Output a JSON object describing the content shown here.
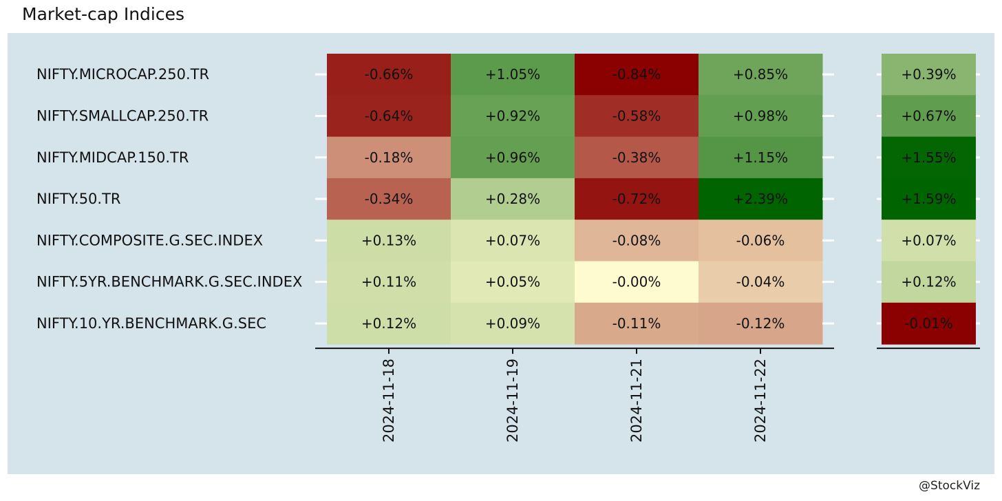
{
  "title": "Market-cap Indices",
  "credit": "@StockViz",
  "colors": {
    "panel_background": "#d5e3ea",
    "tick_marks": "#ffffff",
    "axis_line": "#111111",
    "text": "#111111",
    "strong_negative": "#8b0000",
    "neutral": "#fffbd0",
    "strong_positive": "#006400"
  },
  "chart_data": [
    {
      "type": "heatmap",
      "title": "",
      "xlabel": "",
      "ylabel": "",
      "x": [
        "2024-11-18",
        "2024-11-19",
        "2024-11-21",
        "2024-11-22"
      ],
      "y": [
        "NIFTY.MICROCAP.250.TR",
        "NIFTY.SMALLCAP.250.TR",
        "NIFTY.MIDCAP.150.TR",
        "NIFTY.50.TR",
        "NIFTY.COMPOSITE.G.SEC.INDEX",
        "NIFTY.5YR.BENCHMARK.G.SEC.INDEX",
        "NIFTY.10.YR.BENCHMARK.G.SEC"
      ],
      "values": [
        [
          -0.66,
          1.05,
          -0.84,
          0.85
        ],
        [
          -0.64,
          0.92,
          -0.58,
          0.98
        ],
        [
          -0.18,
          0.96,
          -0.38,
          1.15
        ],
        [
          -0.34,
          0.28,
          -0.72,
          2.39
        ],
        [
          0.13,
          0.07,
          -0.08,
          -0.06
        ],
        [
          0.11,
          0.05,
          -0.0,
          -0.04
        ],
        [
          0.12,
          0.09,
          -0.11,
          -0.12
        ]
      ],
      "labels": [
        [
          "-0.66%",
          "+1.05%",
          "-0.84%",
          "+0.85%"
        ],
        [
          "-0.64%",
          "+0.92%",
          "-0.58%",
          "+0.98%"
        ],
        [
          "-0.18%",
          "+0.96%",
          "-0.38%",
          "+1.15%"
        ],
        [
          "-0.34%",
          "+0.28%",
          "-0.72%",
          "+2.39%"
        ],
        [
          "+0.13%",
          "+0.07%",
          "-0.08%",
          "-0.06%"
        ],
        [
          "+0.11%",
          "+0.05%",
          "-0.00%",
          "-0.04%"
        ],
        [
          "+0.12%",
          "+0.09%",
          "-0.11%",
          "-0.12%"
        ]
      ],
      "colorscale": "red-to-yellow-to-green, diverging at 0"
    },
    {
      "type": "heatmap",
      "title": "",
      "xlabel": "",
      "ylabel": "",
      "x": [],
      "y": [
        "NIFTY.MICROCAP.250.TR",
        "NIFTY.SMALLCAP.250.TR",
        "NIFTY.MIDCAP.150.TR",
        "NIFTY.50.TR",
        "NIFTY.COMPOSITE.G.SEC.INDEX",
        "NIFTY.5YR.BENCHMARK.G.SEC.INDEX",
        "NIFTY.10.YR.BENCHMARK.G.SEC"
      ],
      "values": [
        0.39,
        0.67,
        1.55,
        1.59,
        0.07,
        0.12,
        -0.01
      ],
      "labels": [
        "+0.39%",
        "+0.67%",
        "+1.55%",
        "+1.59%",
        "+0.07%",
        "+0.12%",
        "-0.01%"
      ],
      "colorscale": "red-to-yellow-to-green, own scale"
    }
  ]
}
